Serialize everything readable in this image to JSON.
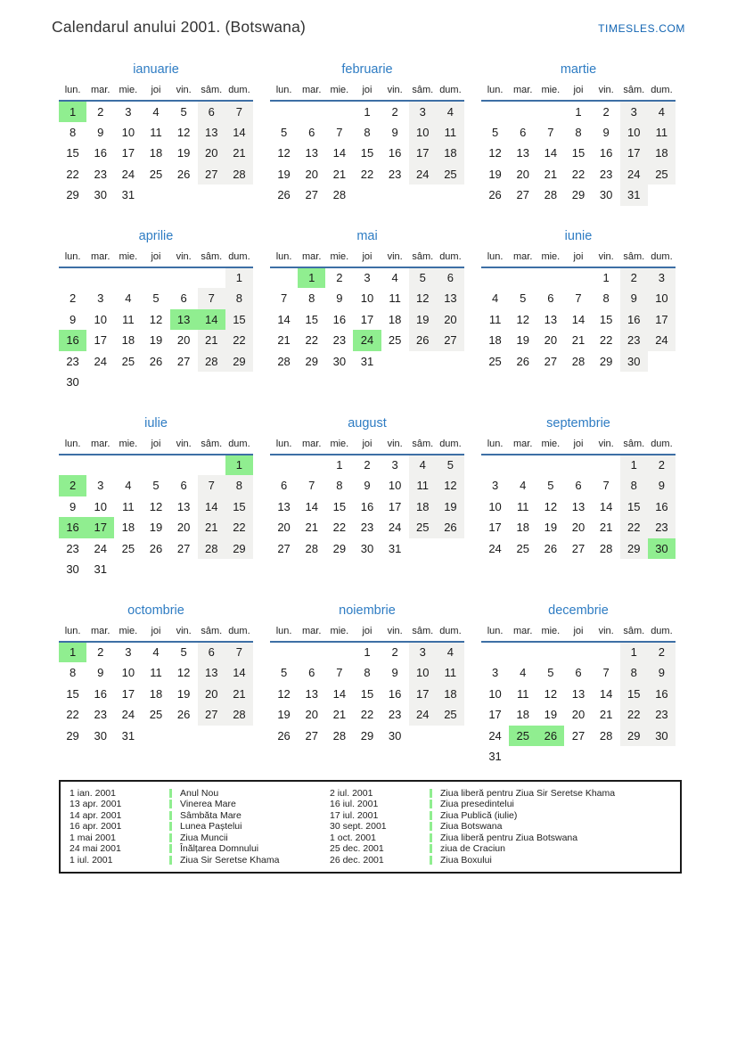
{
  "page": {
    "title": "Calendarul anului 2001. (Botswana)",
    "brand": "TIMESLES.COM"
  },
  "colors": {
    "holiday_green": "#90ee90",
    "weekend_gray": "#f1f1ef",
    "title_blue": "#2e7cc3",
    "underline_blue": "#3d6fa5",
    "brand_blue": "#1265b3"
  },
  "day_headers": [
    "lun.",
    "mar.",
    "mie.",
    "joi",
    "vin.",
    "sâm.",
    "dum."
  ],
  "months": [
    {
      "name": "ianuarie",
      "holidays": [
        1
      ],
      "weeks": [
        [
          1,
          2,
          3,
          4,
          5,
          6,
          7
        ],
        [
          8,
          9,
          10,
          11,
          12,
          13,
          14
        ],
        [
          15,
          16,
          17,
          18,
          19,
          20,
          21
        ],
        [
          22,
          23,
          24,
          25,
          26,
          27,
          28
        ],
        [
          29,
          30,
          31,
          null,
          null,
          null,
          null
        ]
      ]
    },
    {
      "name": "februarie",
      "holidays": [],
      "weeks": [
        [
          null,
          null,
          null,
          1,
          2,
          3,
          4
        ],
        [
          5,
          6,
          7,
          8,
          9,
          10,
          11
        ],
        [
          12,
          13,
          14,
          15,
          16,
          17,
          18
        ],
        [
          19,
          20,
          21,
          22,
          23,
          24,
          25
        ],
        [
          26,
          27,
          28,
          null,
          null,
          null,
          null
        ]
      ]
    },
    {
      "name": "martie",
      "holidays": [],
      "weeks": [
        [
          null,
          null,
          null,
          1,
          2,
          3,
          4
        ],
        [
          5,
          6,
          7,
          8,
          9,
          10,
          11
        ],
        [
          12,
          13,
          14,
          15,
          16,
          17,
          18
        ],
        [
          19,
          20,
          21,
          22,
          23,
          24,
          25
        ],
        [
          26,
          27,
          28,
          29,
          30,
          31,
          null
        ]
      ]
    },
    {
      "name": "aprilie",
      "holidays": [
        13,
        14,
        16
      ],
      "weeks": [
        [
          null,
          null,
          null,
          null,
          null,
          null,
          1
        ],
        [
          2,
          3,
          4,
          5,
          6,
          7,
          8
        ],
        [
          9,
          10,
          11,
          12,
          13,
          14,
          15
        ],
        [
          16,
          17,
          18,
          19,
          20,
          21,
          22
        ],
        [
          23,
          24,
          25,
          26,
          27,
          28,
          29
        ],
        [
          30,
          null,
          null,
          null,
          null,
          null,
          null
        ]
      ]
    },
    {
      "name": "mai",
      "holidays": [
        1,
        24
      ],
      "weeks": [
        [
          null,
          1,
          2,
          3,
          4,
          5,
          6
        ],
        [
          7,
          8,
          9,
          10,
          11,
          12,
          13
        ],
        [
          14,
          15,
          16,
          17,
          18,
          19,
          20
        ],
        [
          21,
          22,
          23,
          24,
          25,
          26,
          27
        ],
        [
          28,
          29,
          30,
          31,
          null,
          null,
          null
        ]
      ]
    },
    {
      "name": "iunie",
      "holidays": [],
      "weeks": [
        [
          null,
          null,
          null,
          null,
          1,
          2,
          3
        ],
        [
          4,
          5,
          6,
          7,
          8,
          9,
          10
        ],
        [
          11,
          12,
          13,
          14,
          15,
          16,
          17
        ],
        [
          18,
          19,
          20,
          21,
          22,
          23,
          24
        ],
        [
          25,
          26,
          27,
          28,
          29,
          30,
          null
        ]
      ]
    },
    {
      "name": "iulie",
      "holidays": [
        1,
        2,
        16,
        17
      ],
      "weeks": [
        [
          null,
          null,
          null,
          null,
          null,
          null,
          1
        ],
        [
          2,
          3,
          4,
          5,
          6,
          7,
          8
        ],
        [
          9,
          10,
          11,
          12,
          13,
          14,
          15
        ],
        [
          16,
          17,
          18,
          19,
          20,
          21,
          22
        ],
        [
          23,
          24,
          25,
          26,
          27,
          28,
          29
        ],
        [
          30,
          31,
          null,
          null,
          null,
          null,
          null
        ]
      ]
    },
    {
      "name": "august",
      "holidays": [],
      "weeks": [
        [
          null,
          null,
          1,
          2,
          3,
          4,
          5
        ],
        [
          6,
          7,
          8,
          9,
          10,
          11,
          12
        ],
        [
          13,
          14,
          15,
          16,
          17,
          18,
          19
        ],
        [
          20,
          21,
          22,
          23,
          24,
          25,
          26
        ],
        [
          27,
          28,
          29,
          30,
          31,
          null,
          null
        ]
      ]
    },
    {
      "name": "septembrie",
      "holidays": [
        30
      ],
      "weeks": [
        [
          null,
          null,
          null,
          null,
          null,
          1,
          2
        ],
        [
          3,
          4,
          5,
          6,
          7,
          8,
          9
        ],
        [
          10,
          11,
          12,
          13,
          14,
          15,
          16
        ],
        [
          17,
          18,
          19,
          20,
          21,
          22,
          23
        ],
        [
          24,
          25,
          26,
          27,
          28,
          29,
          30
        ]
      ]
    },
    {
      "name": "octombrie",
      "holidays": [
        1
      ],
      "weeks": [
        [
          1,
          2,
          3,
          4,
          5,
          6,
          7
        ],
        [
          8,
          9,
          10,
          11,
          12,
          13,
          14
        ],
        [
          15,
          16,
          17,
          18,
          19,
          20,
          21
        ],
        [
          22,
          23,
          24,
          25,
          26,
          27,
          28
        ],
        [
          29,
          30,
          31,
          null,
          null,
          null,
          null
        ]
      ]
    },
    {
      "name": "noiembrie",
      "holidays": [],
      "weeks": [
        [
          null,
          null,
          null,
          1,
          2,
          3,
          4
        ],
        [
          5,
          6,
          7,
          8,
          9,
          10,
          11
        ],
        [
          12,
          13,
          14,
          15,
          16,
          17,
          18
        ],
        [
          19,
          20,
          21,
          22,
          23,
          24,
          25
        ],
        [
          26,
          27,
          28,
          29,
          30,
          null,
          null
        ]
      ]
    },
    {
      "name": "decembrie",
      "holidays": [
        25,
        26
      ],
      "weeks": [
        [
          null,
          null,
          null,
          null,
          null,
          1,
          2
        ],
        [
          3,
          4,
          5,
          6,
          7,
          8,
          9
        ],
        [
          10,
          11,
          12,
          13,
          14,
          15,
          16
        ],
        [
          17,
          18,
          19,
          20,
          21,
          22,
          23
        ],
        [
          24,
          25,
          26,
          27,
          28,
          29,
          30
        ],
        [
          31,
          null,
          null,
          null,
          null,
          null,
          null
        ]
      ]
    }
  ],
  "legend": {
    "columns": [
      {
        "entries": [
          {
            "date": "1 ian. 2001",
            "label": "Anul Nou"
          },
          {
            "date": "13 apr. 2001",
            "label": "Vinerea Mare"
          },
          {
            "date": "14 apr. 2001",
            "label": "Sâmbăta Mare"
          },
          {
            "date": "16 apr. 2001",
            "label": "Lunea Paștelui"
          },
          {
            "date": "1 mai 2001",
            "label": "Ziua Muncii"
          },
          {
            "date": "24 mai 2001",
            "label": "Înălțarea Domnului"
          },
          {
            "date": "1 iul. 2001",
            "label": "Ziua Sir Seretse Khama"
          }
        ]
      },
      {
        "entries": [
          {
            "date": "2 iul. 2001",
            "label": "Ziua liberă pentru Ziua Sir Seretse Khama"
          },
          {
            "date": "16 iul. 2001",
            "label": "Ziua presedintelui"
          },
          {
            "date": "17 iul. 2001",
            "label": "Ziua Publică (iulie)"
          },
          {
            "date": "30 sept. 2001",
            "label": "Ziua Botswana"
          },
          {
            "date": "1 oct. 2001",
            "label": "Ziua liberă pentru Ziua Botswana"
          },
          {
            "date": "25 dec. 2001",
            "label": "ziua de Craciun"
          },
          {
            "date": "26 dec. 2001",
            "label": "Ziua Boxului"
          }
        ]
      }
    ]
  }
}
